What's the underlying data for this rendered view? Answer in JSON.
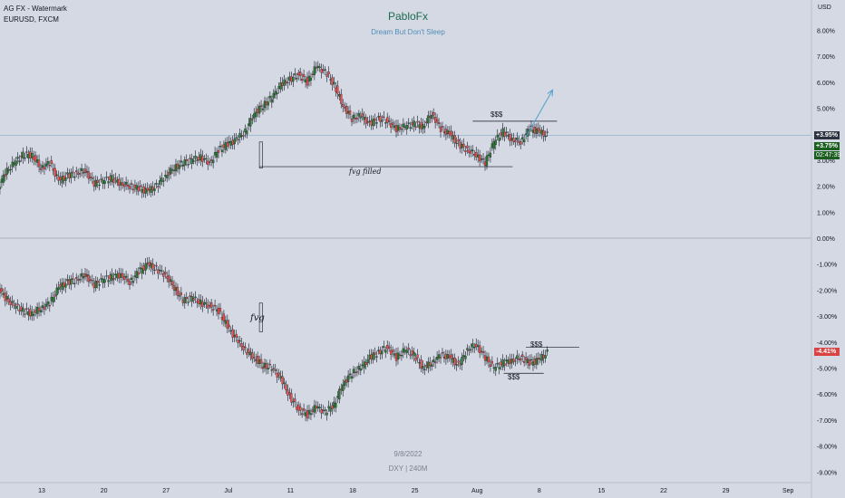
{
  "header": {
    "line1": "AG FX - Watermark",
    "line2": "EURUSD, FXCM"
  },
  "watermark": {
    "title": "PabloFx",
    "subtitle": "Dream But Don't Sleep"
  },
  "footer_watermark": {
    "date": "9/8/2022",
    "label": "DXY | 240M"
  },
  "annotations": {
    "dollars_top": "$$$",
    "fvg_filled": "fvg filled",
    "fvg": "fvg",
    "dollars_bottom_up": "$$$",
    "dollars_bottom_down": "$$$"
  },
  "price_tags": {
    "eurusd_percent": "+3.95%",
    "eurusd_alt": "+3.75%",
    "eurusd_timer": "02:47:39",
    "dxy_percent": "-4.41%"
  },
  "colors": {
    "background": "#d5d9e3",
    "up_candle": "#26a69a",
    "down_candle": "#ef5350",
    "body_eurusd_up": "#2e7d32",
    "body_dxy_up": "#2e7d32",
    "arrow": "#4f9fd0",
    "current_line": "#8fb4cf",
    "zero_line": "#9aa6b3",
    "tag_green": "#1b5e20",
    "tag_red": "#d84343"
  },
  "chart_data": {
    "type": "line",
    "title": "",
    "axis_unit": "USD",
    "x_tick_labels": [
      "13",
      "20",
      "27",
      "Jul",
      "11",
      "18",
      "25",
      "Aug",
      "8",
      "15",
      "22",
      "29",
      "Sep",
      "6"
    ],
    "y_tick_labels": [
      "8.00%",
      "7.00%",
      "6.00%",
      "5.00%",
      "4.00%",
      "3.00%",
      "2.00%",
      "1.00%",
      "0.00%",
      "-1.00%",
      "-2.00%",
      "-3.00%",
      "-4.00%",
      "-5.00%",
      "-6.00%",
      "-7.00%",
      "-8.00%",
      "-9.00%"
    ],
    "ylim": [
      -9.4,
      8.8
    ],
    "x_ticks_index": [
      13,
      20,
      27,
      34,
      41,
      48,
      55,
      62,
      69,
      76,
      83,
      90,
      97,
      104
    ],
    "series": [
      {
        "name": "EURUSD",
        "x": [
          6,
          7,
          8,
          9,
          10,
          11,
          12,
          13,
          14,
          15,
          16,
          17,
          18,
          19,
          20,
          21,
          22,
          23,
          24,
          25,
          26,
          27,
          28,
          29,
          30,
          31,
          32,
          33,
          34,
          35,
          36,
          37,
          38,
          39,
          40,
          41,
          42,
          43,
          44,
          45,
          46,
          47,
          48,
          49,
          50,
          51,
          52,
          53,
          54,
          55,
          56,
          57,
          58,
          59,
          60,
          61,
          62,
          63,
          64,
          65,
          66,
          67,
          68,
          69,
          70
        ],
        "values": [
          0.1,
          0.6,
          1.8,
          2.5,
          2.9,
          3.2,
          3.2,
          2.7,
          2.9,
          2.2,
          2.4,
          2.5,
          2.6,
          2.1,
          2.2,
          2.3,
          2.1,
          2.0,
          1.9,
          1.8,
          2.0,
          2.4,
          2.7,
          2.9,
          3.0,
          3.1,
          2.9,
          3.4,
          3.6,
          3.8,
          4.1,
          4.8,
          5.1,
          5.4,
          5.9,
          6.1,
          6.3,
          6.0,
          6.6,
          6.4,
          5.9,
          5.1,
          4.6,
          4.7,
          4.4,
          4.6,
          4.5,
          4.2,
          4.3,
          4.4,
          4.3,
          4.8,
          4.2,
          4.0,
          3.6,
          3.4,
          3.2,
          2.9,
          3.7,
          4.1,
          3.8,
          3.7,
          4.2,
          4.1,
          3.95
        ]
      },
      {
        "name": "DXY",
        "x": [
          6,
          7,
          8,
          9,
          10,
          11,
          12,
          13,
          14,
          15,
          16,
          17,
          18,
          19,
          20,
          21,
          22,
          23,
          24,
          25,
          26,
          27,
          28,
          29,
          30,
          31,
          32,
          33,
          34,
          35,
          36,
          37,
          38,
          39,
          40,
          41,
          42,
          43,
          44,
          45,
          46,
          47,
          48,
          49,
          50,
          51,
          52,
          53,
          54,
          55,
          56,
          57,
          58,
          59,
          60,
          61,
          62,
          63,
          64,
          65,
          66,
          67,
          68,
          69,
          70
        ],
        "values": [
          -0.2,
          -0.8,
          -1.8,
          -2.3,
          -2.6,
          -2.8,
          -2.9,
          -2.7,
          -2.5,
          -1.9,
          -1.7,
          -1.6,
          -1.4,
          -1.8,
          -1.6,
          -1.5,
          -1.4,
          -1.7,
          -1.3,
          -1.0,
          -1.2,
          -1.4,
          -1.9,
          -2.4,
          -2.3,
          -2.5,
          -2.6,
          -2.8,
          -3.4,
          -3.9,
          -4.3,
          -4.6,
          -4.9,
          -5.0,
          -5.4,
          -6.1,
          -6.6,
          -6.8,
          -6.5,
          -6.7,
          -6.4,
          -5.6,
          -5.2,
          -5.0,
          -4.6,
          -4.4,
          -4.2,
          -4.6,
          -4.3,
          -4.5,
          -5.0,
          -4.8,
          -4.5,
          -4.6,
          -4.9,
          -4.3,
          -4.1,
          -4.6,
          -5.0,
          -4.8,
          -4.7,
          -4.6,
          -4.8,
          -4.7,
          -4.41
        ]
      }
    ],
    "levels": {
      "fvg_filled_y": 2.75,
      "dollars_top_y": 4.5,
      "dxy_dollars_up_y": -4.2,
      "dxy_dollars_down_y": -5.2
    },
    "arrow": {
      "from": [
        67.5,
        3.9
      ],
      "to": [
        70.5,
        5.7
      ]
    },
    "current_value_y": 3.95,
    "grid": false,
    "legend": "none"
  }
}
